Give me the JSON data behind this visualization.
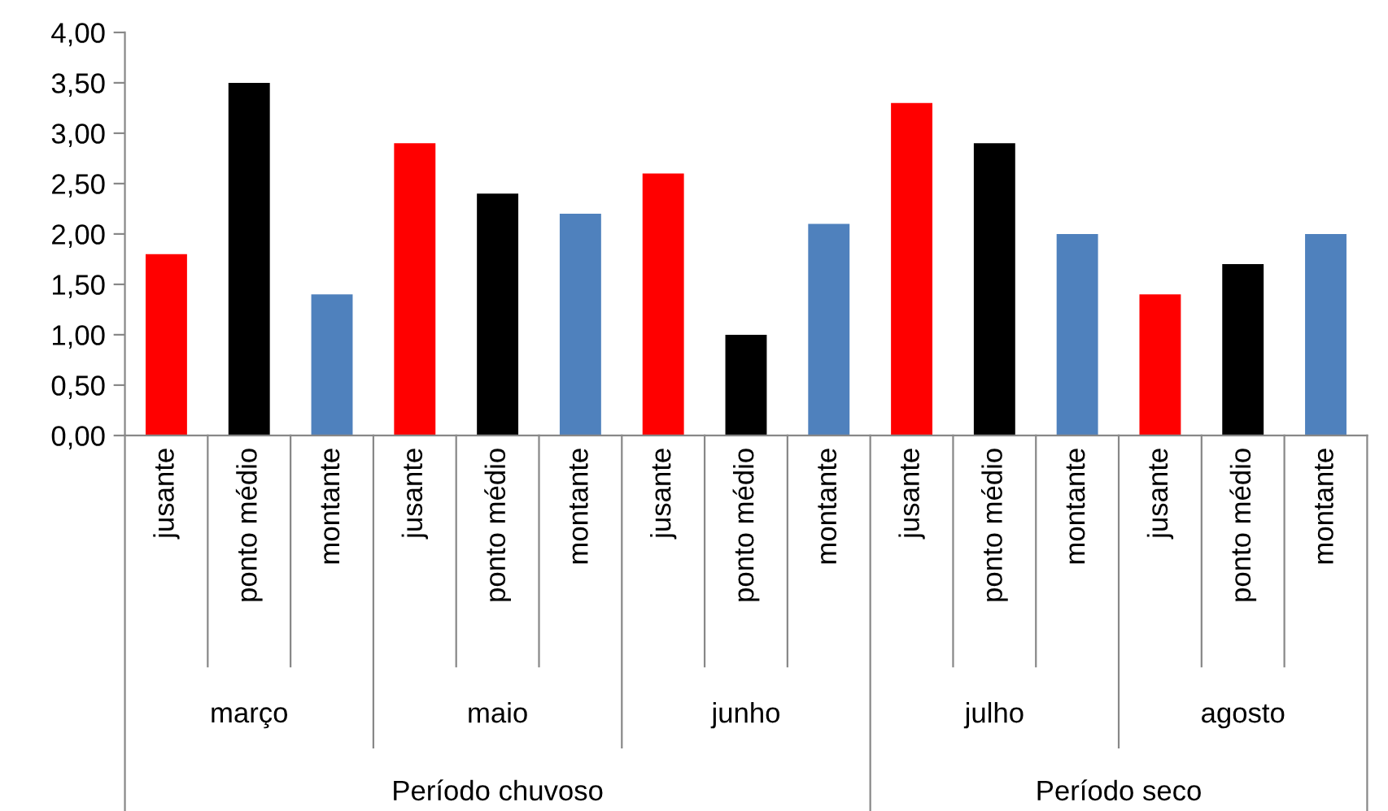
{
  "chart_data": {
    "type": "bar",
    "categories": [
      "jusante",
      "ponto médio",
      "montante",
      "jusante",
      "ponto médio",
      "montante",
      "jusante",
      "ponto médio",
      "montante",
      "jusante",
      "ponto médio",
      "montante",
      "jusante",
      "ponto médio",
      "montante"
    ],
    "values": [
      1.8,
      3.5,
      1.4,
      2.9,
      2.4,
      2.2,
      2.6,
      1.0,
      2.1,
      3.3,
      2.9,
      2.0,
      1.4,
      1.7,
      2.0
    ],
    "colors": [
      "#ff0000",
      "#000000",
      "#4f81bd",
      "#ff0000",
      "#000000",
      "#4f81bd",
      "#ff0000",
      "#000000",
      "#4f81bd",
      "#ff0000",
      "#000000",
      "#4f81bd",
      "#ff0000",
      "#000000",
      "#4f81bd"
    ],
    "ylim": [
      0,
      4
    ],
    "yticks": [
      {
        "value": 0,
        "label": "0,00"
      },
      {
        "value": 0.5,
        "label": "0,50"
      },
      {
        "value": 1,
        "label": "1,00"
      },
      {
        "value": 1.5,
        "label": "1,50"
      },
      {
        "value": 2,
        "label": "2,00"
      },
      {
        "value": 2.5,
        "label": "2,50"
      },
      {
        "value": 3,
        "label": "3,00"
      },
      {
        "value": 3.5,
        "label": "3,50"
      },
      {
        "value": 4,
        "label": "4,00"
      }
    ],
    "annotations": [
      "março",
      "maio",
      "junho",
      "julho",
      "agosto",
      "Período chuvoso",
      "Período seco"
    ],
    "grid": false
  }
}
